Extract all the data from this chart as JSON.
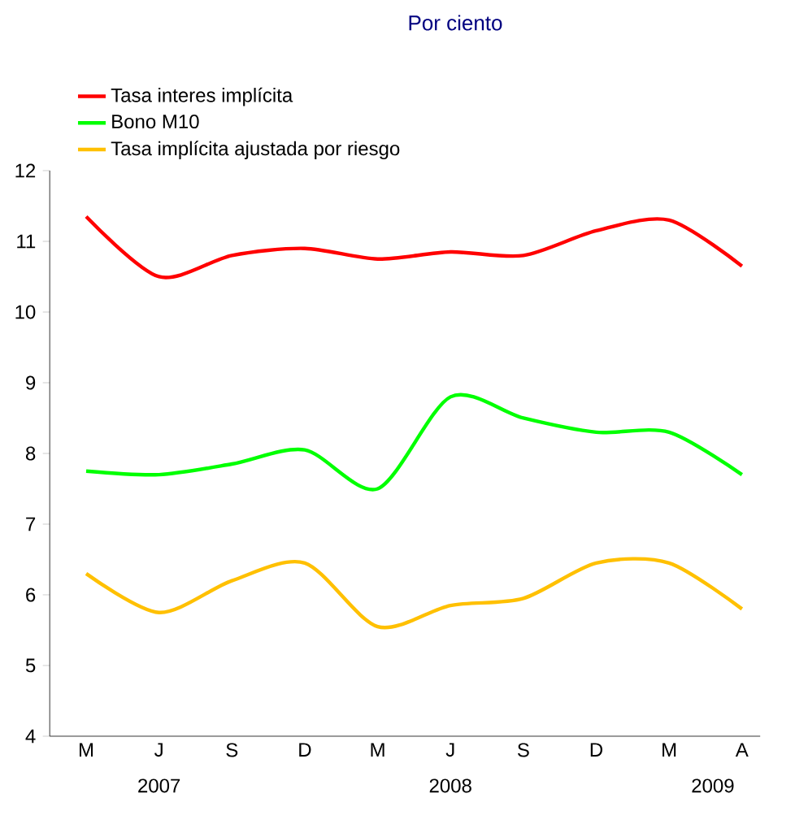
{
  "chart_data": {
    "type": "line",
    "title": "Por ciento",
    "categories": [
      "M",
      "J",
      "S",
      "D",
      "M",
      "J",
      "S",
      "D",
      "M",
      "A"
    ],
    "series": [
      {
        "name": "Tasa interes implícita",
        "color": "#ff0000",
        "values": [
          11.35,
          10.5,
          10.8,
          10.9,
          10.75,
          10.85,
          10.8,
          11.15,
          11.3,
          10.65
        ]
      },
      {
        "name": "Bono M10",
        "color": "#00ff00",
        "values": [
          7.75,
          7.7,
          7.85,
          8.05,
          7.5,
          8.8,
          8.5,
          8.3,
          8.3,
          7.7
        ]
      },
      {
        "name": "Tasa implícita ajustada por riesgo",
        "color": "#ffc000",
        "values": [
          6.3,
          5.75,
          6.2,
          6.45,
          5.55,
          5.85,
          5.95,
          6.45,
          6.45,
          5.8
        ]
      }
    ],
    "ylim": [
      4,
      12
    ],
    "yticks": [
      4,
      5,
      6,
      7,
      8,
      9,
      10,
      11,
      12
    ],
    "legend": "top left",
    "annotations": [
      "2007",
      "2008",
      "2009"
    ]
  }
}
